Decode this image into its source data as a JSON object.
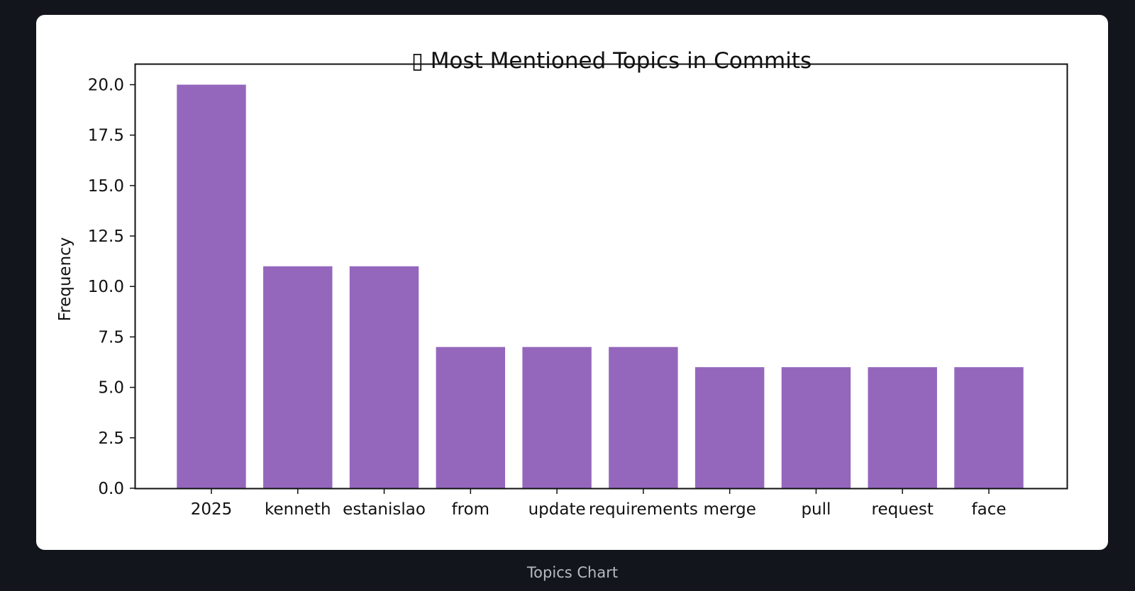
{
  "caption": "Topics Chart",
  "chart_data": {
    "type": "bar",
    "title": "▯ Most Mentioned Topics in Commits",
    "xlabel": "",
    "ylabel": "Frequency",
    "categories": [
      "2025",
      "kenneth",
      "estanislao",
      "from",
      "update",
      "requirements",
      "merge",
      "pull",
      "request",
      "face"
    ],
    "values": [
      20,
      11,
      11,
      7,
      7,
      7,
      6,
      6,
      6,
      6
    ],
    "ylim": [
      0,
      21
    ],
    "yticks": [
      "0.0",
      "2.5",
      "5.0",
      "7.5",
      "10.0",
      "12.5",
      "15.0",
      "17.5",
      "20.0"
    ],
    "bar_color": "#9467bd",
    "grid": false
  }
}
